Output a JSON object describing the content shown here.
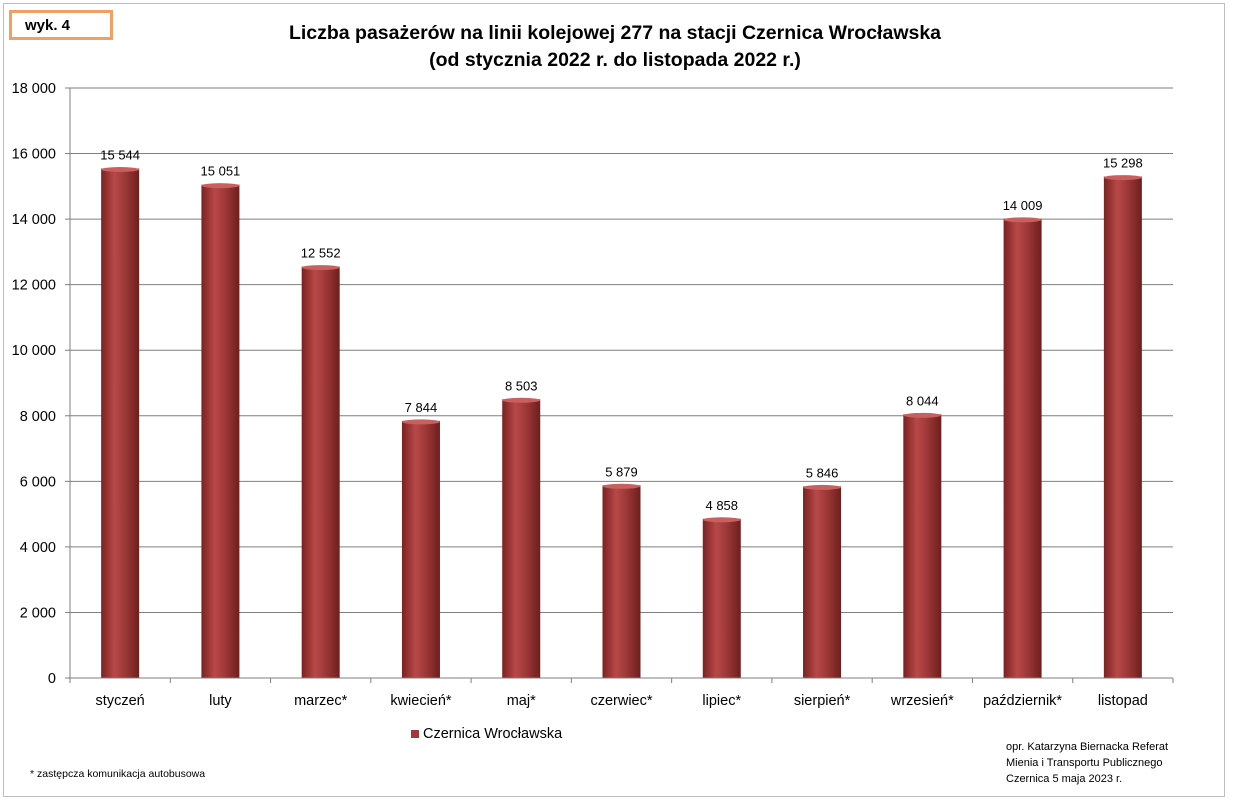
{
  "badge": "wyk. 4",
  "title_line1": "Liczba pasażerów na linii kolejowej 277  na stacji Czernica Wrocławska",
  "title_line2": "(od stycznia 2022 r. do listopada 2022 r.)",
  "legend_label": "Czernica  Wrocławska",
  "footnote": "* zastępcza komunikacja autobusowa",
  "credits": [
    "opr. Katarzyna Biernacka Referat",
    "Mienia i Transportu Publicznego",
    "Czernica 5 maja 2023 r."
  ],
  "chart_data": {
    "type": "bar",
    "categories": [
      "styczeń",
      "luty",
      "marzec*",
      "kwiecień*",
      "maj*",
      "czerwiec*",
      "lipiec*",
      "sierpień*",
      "wrzesień*",
      "październik*",
      "listopad"
    ],
    "series": [
      {
        "name": "Czernica  Wrocławska",
        "values": [
          15544,
          15051,
          12552,
          7844,
          8503,
          5879,
          4858,
          5846,
          8044,
          14009,
          15298
        ],
        "labels": [
          "15 544",
          "15 051",
          "12 552",
          "7 844",
          "8 503",
          "5 879",
          "4 858",
          "5 846",
          "8 044",
          "14 009",
          "15 298"
        ]
      }
    ],
    "ylim": [
      0,
      18000
    ],
    "yticks": [
      0,
      2000,
      4000,
      6000,
      8000,
      10000,
      12000,
      14000,
      16000,
      18000
    ],
    "ytick_labels": [
      "0",
      "2 000",
      "4 000",
      "6 000",
      "8 000",
      "10 000",
      "12 000",
      "14 000",
      "16 000",
      "18 000"
    ],
    "grid": true,
    "legend": "bottom",
    "bar_color": "#a03a3a"
  }
}
